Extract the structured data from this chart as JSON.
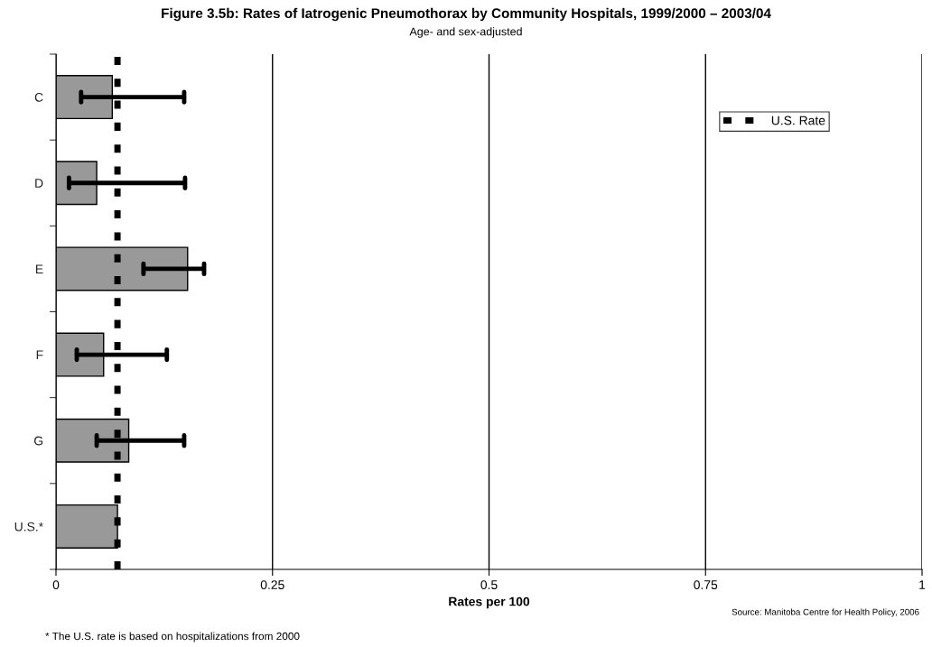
{
  "chart_data": {
    "type": "bar",
    "orientation": "horizontal",
    "title": "Figure 3.5b: Rates of Iatrogenic Pneumothorax by Community Hospitals, 1999/2000 – 2003/04",
    "subtitle": "Age- and sex-adjusted",
    "xlabel": "Rates per 100",
    "categories": [
      "C",
      "D",
      "E",
      "F",
      "G",
      "U.S.*"
    ],
    "series": [
      {
        "color": "#999999",
        "values": [
          0.065,
          0.047,
          0.152,
          0.055,
          0.084,
          0.071
        ],
        "errors": [
          [
            0.029,
            0.148
          ],
          [
            0.015,
            0.149
          ],
          [
            0.101,
            0.171
          ],
          [
            0.024,
            0.128
          ],
          [
            0.047,
            0.148
          ],
          null
        ]
      }
    ],
    "xlim": [
      0,
      1
    ],
    "xticks": [
      0,
      0.25,
      0.5,
      0.75,
      1
    ],
    "grid": "x",
    "ref_lines": [
      {
        "axis": "x",
        "value": 0.071,
        "label": "U.S. Rate",
        "color": "#000000",
        "line_style": "dashed"
      }
    ],
    "legend": "top right",
    "annotations": [
      "Source: Manitoba Centre for Health Policy, 2006",
      "* The U.S. rate is based on hospitalizations from 2000"
    ]
  }
}
